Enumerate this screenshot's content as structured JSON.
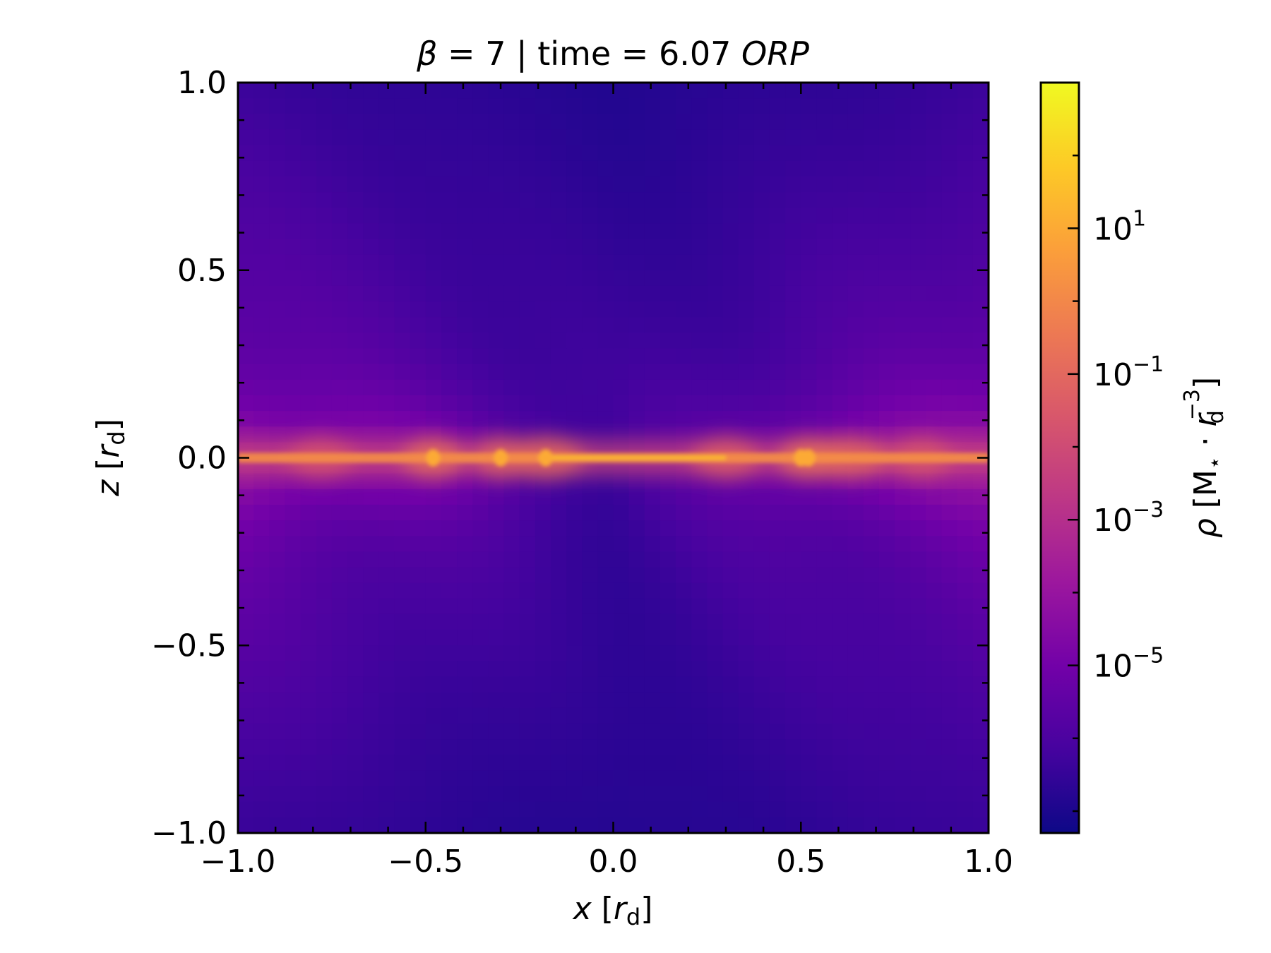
{
  "chart_data": {
    "type": "heatmap",
    "title_parts": {
      "beta_symbol": "β",
      "beta_value": " = 7 | time = 6.07 ",
      "time_unit": "ORP"
    },
    "x_axis": {
      "label_var": "x",
      "label_unit_open": " [",
      "label_unit_var": "r",
      "label_unit_sub": "d",
      "label_unit_close": "]",
      "range": [
        -1.0,
        1.0
      ],
      "tick_values": [
        -1.0,
        -0.5,
        0.0,
        0.5,
        1.0
      ],
      "tick_labels": [
        "−1.0",
        "−0.5",
        "0.0",
        "0.5",
        "1.0"
      ]
    },
    "y_axis": {
      "label_var": "z",
      "label_unit_open": " [",
      "label_unit_var": "r",
      "label_unit_sub": "d",
      "label_unit_close": "]",
      "range": [
        -1.0,
        1.0
      ],
      "tick_values": [
        -1.0,
        -0.5,
        0.0,
        0.5,
        1.0
      ],
      "tick_labels": [
        "−1.0",
        "−0.5",
        "0.0",
        "0.5",
        "1.0"
      ]
    },
    "colorbar": {
      "colormap": "plasma",
      "scale": "log",
      "range_log10": [
        -7.3,
        3.0
      ],
      "label_rho": "ρ",
      "label_open": " [M",
      "label_star": "⋆",
      "label_dot": " · ",
      "label_r": "r",
      "label_sub": "d",
      "label_sup": "−3",
      "label_close": "]",
      "ticks": [
        {
          "exp": 1,
          "base": "10",
          "sup": "1"
        },
        {
          "exp": -1,
          "base": "10",
          "sup": "−1"
        },
        {
          "exp": -3,
          "base": "10",
          "sup": "−3"
        },
        {
          "exp": -5,
          "base": "10",
          "sup": "−5"
        }
      ]
    },
    "grid": false,
    "legend": "none",
    "colors": {
      "cmap_stops": [
        "#0d0887",
        "#46039f",
        "#7201a8",
        "#9c179e",
        "#bd3786",
        "#d8576b",
        "#ed7953",
        "#fb9f3a",
        "#fdca26",
        "#f0f921"
      ]
    }
  }
}
